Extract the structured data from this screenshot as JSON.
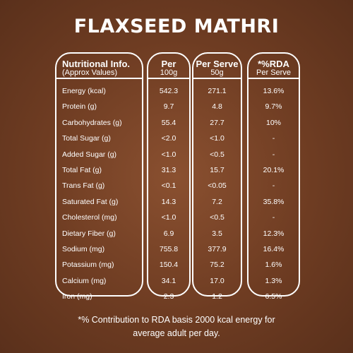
{
  "title": "FLAXSEED MATHRI",
  "headers": {
    "col1_main": "Nutritional Info.",
    "col1_sub": "(Approx Values)",
    "col2_main": "Per",
    "col2_sub": "100g",
    "col3_main": "Per Serve",
    "col3_sub": "50g",
    "col4_main": "*%RDA",
    "col4_sub": "Per Serve"
  },
  "rows": [
    {
      "name": "Energy (kcal)",
      "per100": "542.3",
      "serve": "271.1",
      "rda": "13.6%"
    },
    {
      "name": "Protein (g)",
      "per100": "9.7",
      "serve": "4.8",
      "rda": "9.7%"
    },
    {
      "name": "Carbohydrates (g)",
      "per100": "55.4",
      "serve": "27.7",
      "rda": "10%"
    },
    {
      "name": "Total Sugar (g)",
      "per100": "<2.0",
      "serve": "<1.0",
      "rda": "-"
    },
    {
      "name": "Added Sugar (g)",
      "per100": "<1.0",
      "serve": "<0.5",
      "rda": "-"
    },
    {
      "name": "Total Fat (g)",
      "per100": "31.3",
      "serve": "15.7",
      "rda": "20.1%"
    },
    {
      "name": "Trans Fat (g)",
      "per100": "<0.1",
      "serve": "<0.05",
      "rda": "-"
    },
    {
      "name": "Saturated Fat (g)",
      "per100": "14.3",
      "serve": "7.2",
      "rda": "35.8%"
    },
    {
      "name": "Cholesterol (mg)",
      "per100": "<1.0",
      "serve": "<0.5",
      "rda": "-"
    },
    {
      "name": "Dietary Fiber (g)",
      "per100": "6.9",
      "serve": "3.5",
      "rda": "12.3%"
    },
    {
      "name": "Sodium (mg)",
      "per100": "755.8",
      "serve": "377.9",
      "rda": "16.4%"
    },
    {
      "name": "Potassium (mg)",
      "per100": "150.4",
      "serve": "75.2",
      "rda": "1.6%"
    },
    {
      "name": "Calcium (mg)",
      "per100": "34.1",
      "serve": "17.0",
      "rda": "1.3%"
    },
    {
      "name": "Iron (mg)",
      "per100": "2.3",
      "serve": "1.2",
      "rda": "6.5%"
    }
  ],
  "footnote_line1": "*% Contribution to RDA basis 2000 kcal energy for",
  "footnote_line2": "average adult per day.",
  "colors": {
    "background": "#6e3c22",
    "text": "#ffffff"
  }
}
